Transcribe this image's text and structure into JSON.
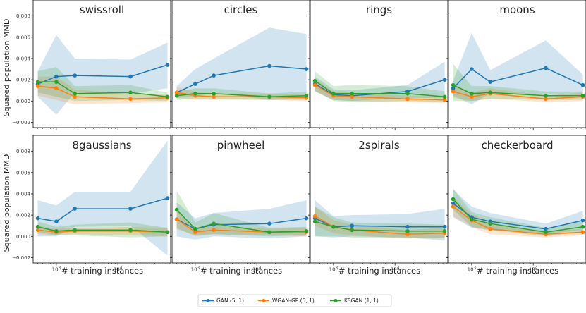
{
  "figure": {
    "y_axis_label": "Squared population MMD",
    "x_axis_label": "# training instances"
  },
  "legend": {
    "placement": "bottom-center",
    "items": [
      {
        "name": "GAN (5, 1)",
        "color": "#1f77b4"
      },
      {
        "name": "WGAN-GP (5, 1)",
        "color": "#ff7f0e"
      },
      {
        "name": "KSGAN (1, 1)",
        "color": "#2ca02c"
      }
    ]
  },
  "chart_data": [
    {
      "type": "line",
      "title": "swissroll",
      "x": [
        500,
        1000,
        2000,
        16000,
        64000
      ],
      "xscale": "log",
      "ylim": [
        -0.0025,
        0.0095
      ],
      "yticks": [
        -0.002,
        0.0,
        0.002,
        0.004,
        0.006,
        0.008
      ],
      "xticks": [
        1000,
        10000
      ],
      "grid": false,
      "series": [
        {
          "name": "GAN (5, 1)",
          "values": [
            0.0016,
            0.0023,
            0.0024,
            0.0023,
            0.0034
          ],
          "lower": [
            0.0004,
            -0.0013,
            0.0008,
            0.0007,
            0.0012
          ],
          "upper": [
            0.0028,
            0.0062,
            0.004,
            0.0039,
            0.0055
          ]
        },
        {
          "name": "WGAN-GP (5, 1)",
          "values": [
            0.0014,
            0.0012,
            0.0004,
            0.0002,
            0.0003
          ],
          "lower": [
            0.0005,
            0.0001,
            -0.0003,
            -0.0002,
            -0.0001
          ],
          "upper": [
            0.0023,
            0.0023,
            0.0011,
            0.0006,
            0.0007
          ]
        },
        {
          "name": "KSGAN (1, 1)",
          "values": [
            0.0018,
            0.0018,
            0.0007,
            0.0008,
            0.0004
          ],
          "lower": [
            0.0008,
            0.0004,
            0.0,
            0.0001,
            0.0
          ],
          "upper": [
            0.0028,
            0.0032,
            0.0014,
            0.0015,
            0.0008
          ]
        }
      ]
    },
    {
      "type": "line",
      "title": "circles",
      "x": [
        500,
        1000,
        2000,
        16000,
        64000
      ],
      "xscale": "log",
      "ylim": [
        -0.0025,
        0.0095
      ],
      "yticks": [
        -0.002,
        0.0,
        0.002,
        0.004,
        0.006,
        0.008
      ],
      "xticks": [
        1000,
        10000
      ],
      "grid": false,
      "series": [
        {
          "name": "GAN (5, 1)",
          "values": [
            0.0008,
            0.0016,
            0.0024,
            0.0033,
            0.003
          ],
          "lower": [
            0.0003,
            0.0004,
            0.0008,
            0.0001,
            0.0003
          ],
          "upper": [
            0.0014,
            0.003,
            0.004,
            0.0069,
            0.0063
          ]
        },
        {
          "name": "WGAN-GP (5, 1)",
          "values": [
            0.0008,
            0.0005,
            0.0004,
            0.0004,
            0.0003
          ],
          "lower": [
            0.0003,
            0.0001,
            0.0001,
            0.0001,
            0.0
          ],
          "upper": [
            0.0013,
            0.0009,
            0.0007,
            0.0007,
            0.0006
          ]
        },
        {
          "name": "KSGAN (1, 1)",
          "values": [
            0.0005,
            0.0007,
            0.0007,
            0.0004,
            0.0005
          ],
          "lower": [
            0.0001,
            0.0002,
            0.0002,
            0.0001,
            0.0001
          ],
          "upper": [
            0.0009,
            0.0012,
            0.0012,
            0.0007,
            0.0009
          ]
        }
      ]
    },
    {
      "type": "line",
      "title": "rings",
      "x": [
        500,
        1000,
        2000,
        16000,
        64000
      ],
      "xscale": "log",
      "ylim": [
        -0.0025,
        0.0095
      ],
      "yticks": [
        -0.002,
        0.0,
        0.002,
        0.004,
        0.006,
        0.008
      ],
      "xticks": [
        1000,
        10000
      ],
      "grid": false,
      "series": [
        {
          "name": "GAN (5, 1)",
          "values": [
            0.0016,
            0.0006,
            0.0005,
            0.0009,
            0.002
          ],
          "lower": [
            0.0009,
            0.0001,
            0.0,
            0.0003,
            0.0003
          ],
          "upper": [
            0.0023,
            0.0011,
            0.001,
            0.0015,
            0.0037
          ]
        },
        {
          "name": "WGAN-GP (5, 1)",
          "values": [
            0.0015,
            0.0005,
            0.0004,
            0.0002,
            0.0001
          ],
          "lower": [
            0.0009,
            0.0001,
            0.0,
            -0.0001,
            -0.0002
          ],
          "upper": [
            0.0021,
            0.0009,
            0.0008,
            0.0005,
            0.0004
          ]
        },
        {
          "name": "KSGAN (1, 1)",
          "values": [
            0.0019,
            0.0007,
            0.0007,
            0.0007,
            0.0004
          ],
          "lower": [
            0.001,
            0.0,
            -0.0001,
            0.0,
            -0.0001
          ],
          "upper": [
            0.0028,
            0.0014,
            0.0015,
            0.0014,
            0.0009
          ]
        }
      ]
    },
    {
      "type": "line",
      "title": "moons",
      "x": [
        500,
        1000,
        2000,
        16000,
        64000
      ],
      "xscale": "log",
      "ylim": [
        -0.0025,
        0.0095
      ],
      "yticks": [
        -0.002,
        0.0,
        0.002,
        0.004,
        0.006,
        0.008
      ],
      "xticks": [
        1000,
        10000
      ],
      "grid": false,
      "series": [
        {
          "name": "GAN (5, 1)",
          "values": [
            0.0012,
            0.003,
            0.0018,
            0.0031,
            0.0015
          ],
          "lower": [
            0.0005,
            -0.0003,
            0.0007,
            0.0006,
            0.0005
          ],
          "upper": [
            0.0019,
            0.0064,
            0.0029,
            0.0057,
            0.0025
          ]
        },
        {
          "name": "WGAN-GP (5, 1)",
          "values": [
            0.0009,
            0.0004,
            0.0007,
            0.0002,
            0.0004
          ],
          "lower": [
            0.0003,
            0.0,
            0.0002,
            -0.0001,
            0.0
          ],
          "upper": [
            0.0015,
            0.0008,
            0.0012,
            0.0005,
            0.0008
          ]
        },
        {
          "name": "KSGAN (1, 1)",
          "values": [
            0.0015,
            0.0007,
            0.0008,
            0.0005,
            0.0005
          ],
          "lower": [
            0.0,
            0.0,
            0.0002,
            0.0001,
            0.0001
          ],
          "upper": [
            0.0035,
            0.0014,
            0.0014,
            0.0009,
            0.0009
          ]
        }
      ]
    },
    {
      "type": "line",
      "title": "8gaussians",
      "x": [
        500,
        1000,
        2000,
        16000,
        64000
      ],
      "xscale": "log",
      "ylim": [
        -0.0025,
        0.0095
      ],
      "yticks": [
        -0.002,
        0.0,
        0.002,
        0.004,
        0.006,
        0.008
      ],
      "xticks": [
        1000,
        10000
      ],
      "grid": false,
      "series": [
        {
          "name": "GAN (5, 1)",
          "values": [
            0.0017,
            0.0014,
            0.0026,
            0.0026,
            0.0036
          ],
          "lower": [
            0.0,
            0.0,
            0.0009,
            0.001,
            -0.0018
          ],
          "upper": [
            0.0034,
            0.0029,
            0.0042,
            0.0042,
            0.009
          ]
        },
        {
          "name": "WGAN-GP (5, 1)",
          "values": [
            0.0006,
            0.0004,
            0.0005,
            0.0005,
            0.0004
          ],
          "lower": [
            0.0002,
            0.0001,
            0.0002,
            0.0001,
            0.0
          ],
          "upper": [
            0.001,
            0.0007,
            0.0008,
            0.0009,
            0.0008
          ]
        },
        {
          "name": "KSGAN (1, 1)",
          "values": [
            0.0009,
            0.0005,
            0.0006,
            0.0006,
            0.0004
          ],
          "lower": [
            0.0004,
            0.0001,
            0.0001,
            -0.0001,
            0.0
          ],
          "upper": [
            0.0014,
            0.0009,
            0.0011,
            0.0013,
            0.0008
          ]
        }
      ]
    },
    {
      "type": "line",
      "title": "pinwheel",
      "x": [
        500,
        1000,
        2000,
        16000,
        64000
      ],
      "xscale": "log",
      "ylim": [
        -0.0025,
        0.0095
      ],
      "yticks": [
        -0.002,
        0.0,
        0.002,
        0.004,
        0.006,
        0.008
      ],
      "xticks": [
        1000,
        10000
      ],
      "grid": false,
      "series": [
        {
          "name": "GAN (5, 1)",
          "values": [
            0.0016,
            0.0007,
            0.0011,
            0.0012,
            0.0017
          ],
          "lower": [
            0.0,
            -0.0003,
            0.0,
            -0.0002,
            0.0
          ],
          "upper": [
            0.0032,
            0.0017,
            0.0022,
            0.0026,
            0.0034
          ]
        },
        {
          "name": "WGAN-GP (5, 1)",
          "values": [
            0.0016,
            0.0004,
            0.0006,
            0.0004,
            0.0004
          ],
          "lower": [
            0.0008,
            0.0,
            0.0002,
            0.0001,
            0.0
          ],
          "upper": [
            0.0024,
            0.0008,
            0.001,
            0.0007,
            0.0008
          ]
        },
        {
          "name": "KSGAN (1, 1)",
          "values": [
            0.0025,
            0.0007,
            0.0012,
            0.0004,
            0.0005
          ],
          "lower": [
            0.0007,
            0.0001,
            0.0002,
            0.0,
            0.0001
          ],
          "upper": [
            0.0043,
            0.0013,
            0.0022,
            0.0008,
            0.0009
          ]
        }
      ]
    },
    {
      "type": "line",
      "title": "2spirals",
      "x": [
        500,
        1000,
        2000,
        16000,
        64000
      ],
      "xscale": "log",
      "ylim": [
        -0.0025,
        0.0095
      ],
      "yticks": [
        -0.002,
        0.0,
        0.002,
        0.004,
        0.006,
        0.008
      ],
      "xticks": [
        1000,
        10000
      ],
      "grid": false,
      "series": [
        {
          "name": "GAN (5, 1)",
          "values": [
            0.0017,
            0.0009,
            0.001,
            0.0009,
            0.0009
          ],
          "lower": [
            0.0,
            -0.0001,
            0.0,
            -0.0001,
            -0.0004
          ],
          "upper": [
            0.0034,
            0.0019,
            0.002,
            0.0021,
            0.0026
          ]
        },
        {
          "name": "WGAN-GP (5, 1)",
          "values": [
            0.0019,
            0.0009,
            0.0006,
            0.0002,
            0.0003
          ],
          "lower": [
            0.001,
            0.0003,
            0.0001,
            -0.0002,
            -0.0002
          ],
          "upper": [
            0.0028,
            0.0015,
            0.0011,
            0.0006,
            0.0008
          ]
        },
        {
          "name": "KSGAN (1, 1)",
          "values": [
            0.0014,
            0.0009,
            0.0006,
            0.0005,
            0.0005
          ],
          "lower": [
            0.0,
            0.0,
            -0.0001,
            -0.0002,
            -0.0001
          ],
          "upper": [
            0.0028,
            0.0018,
            0.0013,
            0.0012,
            0.0011
          ]
        }
      ]
    },
    {
      "type": "line",
      "title": "checkerboard",
      "x": [
        500,
        1000,
        2000,
        16000,
        64000
      ],
      "xscale": "log",
      "ylim": [
        -0.0025,
        0.0095
      ],
      "yticks": [
        -0.002,
        0.0,
        0.002,
        0.004,
        0.006,
        0.008
      ],
      "xticks": [
        1000,
        10000
      ],
      "grid": false,
      "series": [
        {
          "name": "GAN (5, 1)",
          "values": [
            0.0031,
            0.0018,
            0.0014,
            0.0007,
            0.0015
          ],
          "lower": [
            0.0018,
            0.0008,
            0.0006,
            0.0002,
            0.0006
          ],
          "upper": [
            0.0044,
            0.0028,
            0.0022,
            0.0012,
            0.0024
          ]
        },
        {
          "name": "WGAN-GP (5, 1)",
          "values": [
            0.0028,
            0.0015,
            0.0007,
            0.0002,
            0.0004
          ],
          "lower": [
            0.0019,
            0.0009,
            0.0002,
            -0.0001,
            0.0001
          ],
          "upper": [
            0.0037,
            0.0021,
            0.0012,
            0.0005,
            0.0007
          ]
        },
        {
          "name": "KSGAN (1, 1)",
          "values": [
            0.0035,
            0.0016,
            0.0012,
            0.0004,
            0.0009
          ],
          "lower": [
            0.0025,
            0.0009,
            0.0006,
            0.0,
            0.0004
          ],
          "upper": [
            0.0045,
            0.0023,
            0.0018,
            0.0008,
            0.0014
          ]
        }
      ]
    }
  ]
}
